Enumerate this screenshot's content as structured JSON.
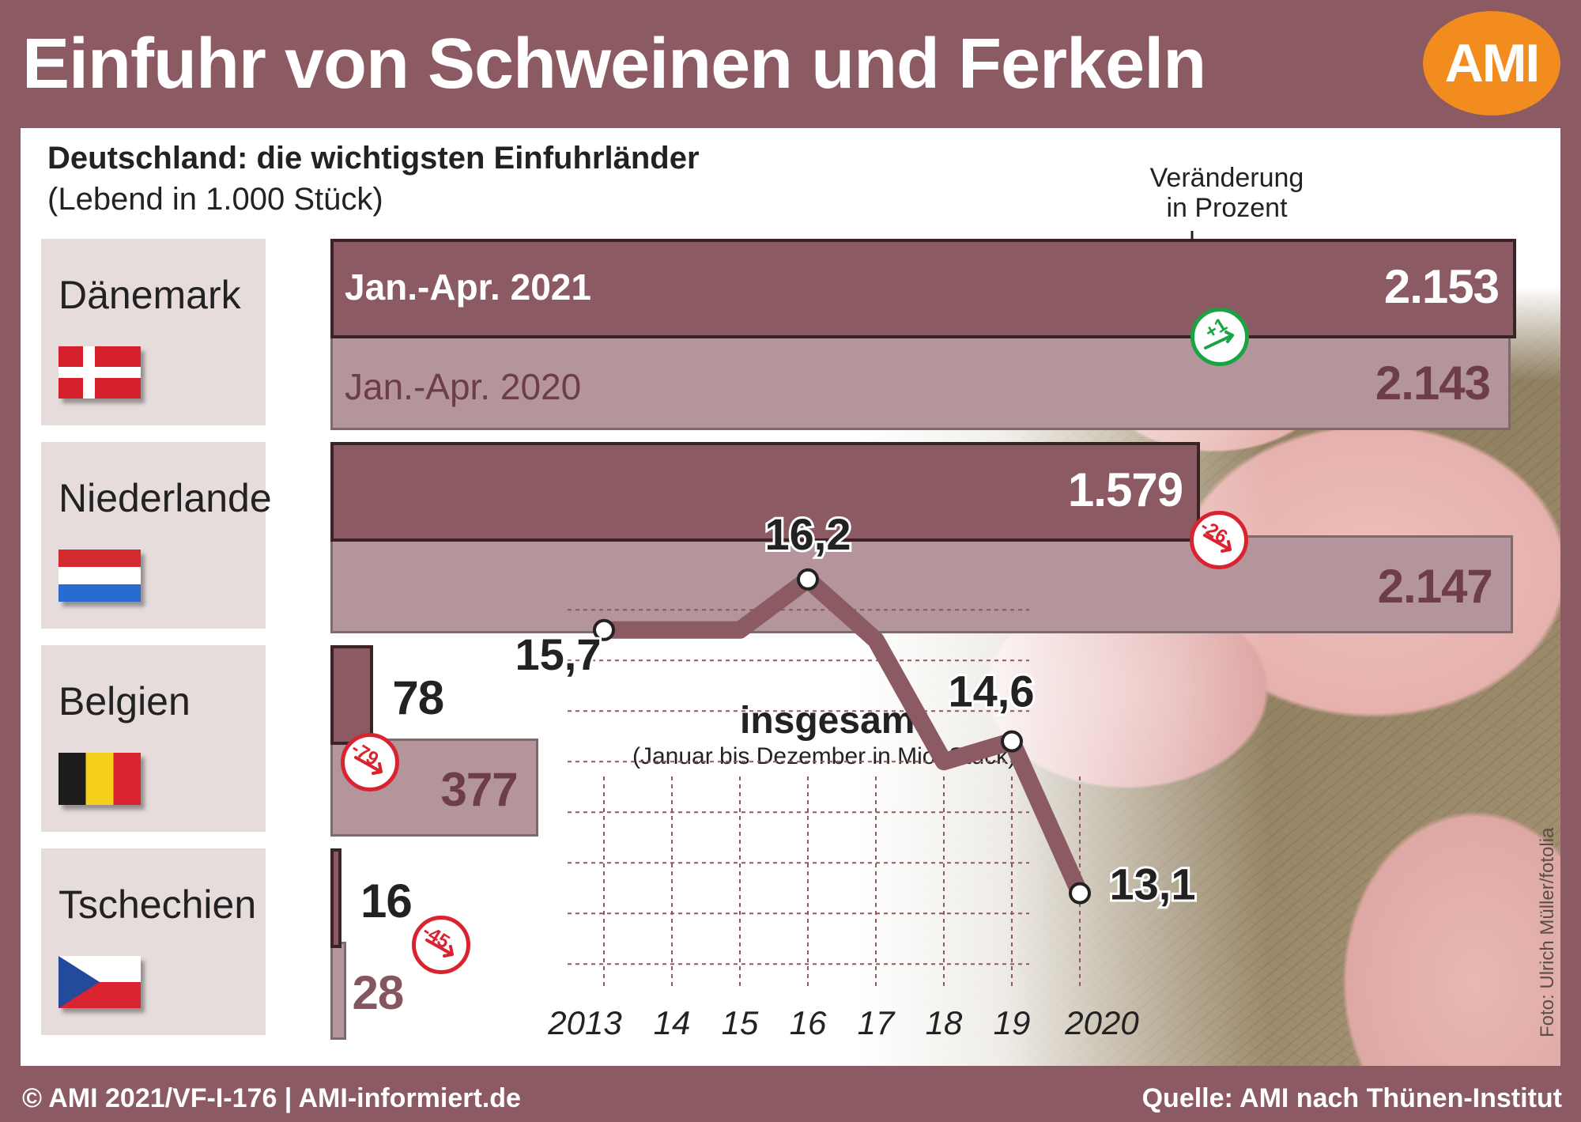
{
  "header": {
    "title": "Einfuhr von Schweinen und Ferkeln",
    "logo": "AMI"
  },
  "panel": {
    "subtitle": "Deutschland: die wichtigsten Einfuhrländer",
    "unit_note": "(Lebend in 1.000 Stück)",
    "change_label_line1": "Veränderung",
    "change_label_line2": "in Prozent",
    "photo_credit": "Foto: Ulrich Müller/fotolia"
  },
  "footer": {
    "left": "© AMI 2021/VF-I-176 | AMI-informiert.de",
    "right": "Quelle: AMI nach Thünen-Institut"
  },
  "colors": {
    "background": "#8b5a63",
    "bar_current": "#8b5a63",
    "bar_previous": "#b3959b",
    "badge_up": "#1aa342",
    "badge_down": "#d9232e",
    "logo": "#f28c1e"
  },
  "chart_data": [
    {
      "type": "bar",
      "orientation": "horizontal",
      "title": "Deutschland: die wichtigsten Einfuhrländer",
      "subtitle": "(Lebend in 1.000 Stück)",
      "categories": [
        "Dänemark",
        "Niederlande",
        "Belgien",
        "Tschechien"
      ],
      "flags": [
        "flag-denmark",
        "flag-netherlands",
        "flag-belgium",
        "flag-czechia"
      ],
      "series": [
        {
          "name": "Jan.-Apr. 2021",
          "values": [
            2153,
            1579,
            78,
            16
          ],
          "labels": [
            "2.153",
            "1.579",
            "78",
            "16"
          ]
        },
        {
          "name": "Jan.-Apr. 2020",
          "values": [
            2143,
            2147,
            377,
            28
          ],
          "labels": [
            "2.143",
            "2.147",
            "377",
            "28"
          ]
        }
      ],
      "change_percent": [
        1,
        -26,
        -79,
        -45
      ],
      "change_labels": [
        "+1",
        "-26",
        "-79",
        "-45"
      ],
      "change_title": "Veränderung in Prozent"
    },
    {
      "type": "line",
      "title": "insgesamt",
      "subtitle": "(Januar bis Dezember in Mio. Stück)",
      "x": [
        2013,
        2014,
        2015,
        2016,
        2017,
        2018,
        2019,
        2020
      ],
      "tick_labels": [
        "2013",
        "14",
        "15",
        "16",
        "17",
        "18",
        "19",
        "2020"
      ],
      "values": [
        15.7,
        15.7,
        15.7,
        16.2,
        15.6,
        14.4,
        14.6,
        13.1
      ],
      "labeled_points": [
        {
          "x": 2013,
          "label": "15,7"
        },
        {
          "x": 2016,
          "label": "16,2"
        },
        {
          "x": 2019,
          "label": "14,6"
        },
        {
          "x": 2020,
          "label": "13,1"
        }
      ],
      "grid": true
    }
  ]
}
